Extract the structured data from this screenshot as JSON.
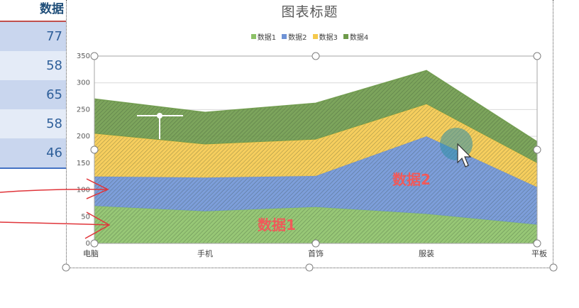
{
  "sheet": {
    "header": "数据",
    "values": [
      "77",
      "58",
      "65",
      "58",
      "46"
    ]
  },
  "chart_data": {
    "type": "area",
    "stacked": true,
    "title": "图表标题",
    "categories": [
      "电脑",
      "手机",
      "首饰",
      "服装",
      "平板"
    ],
    "series": [
      {
        "name": "数据1",
        "values": [
          70,
          60,
          68,
          55,
          35
        ],
        "color": "#8cc167"
      },
      {
        "name": "数据2",
        "values": [
          55,
          63,
          58,
          145,
          70
        ],
        "color": "#6f93d6"
      },
      {
        "name": "数据3",
        "values": [
          80,
          62,
          68,
          60,
          45
        ],
        "color": "#f5c94c"
      },
      {
        "name": "数据4",
        "values": [
          65,
          60,
          68,
          63,
          40
        ],
        "color": "#6e9a4a"
      }
    ],
    "yticks": [
      0,
      50,
      100,
      150,
      200,
      250,
      300,
      350
    ],
    "ylim": [
      0,
      350
    ],
    "grid": true,
    "legend": "top"
  },
  "annotations": {
    "label1": "数据1",
    "label2": "数据2"
  },
  "colors": {
    "annotation": "#f05a5a",
    "arrow": "#e0353a",
    "cursor_highlight": "#2f8fa8"
  }
}
